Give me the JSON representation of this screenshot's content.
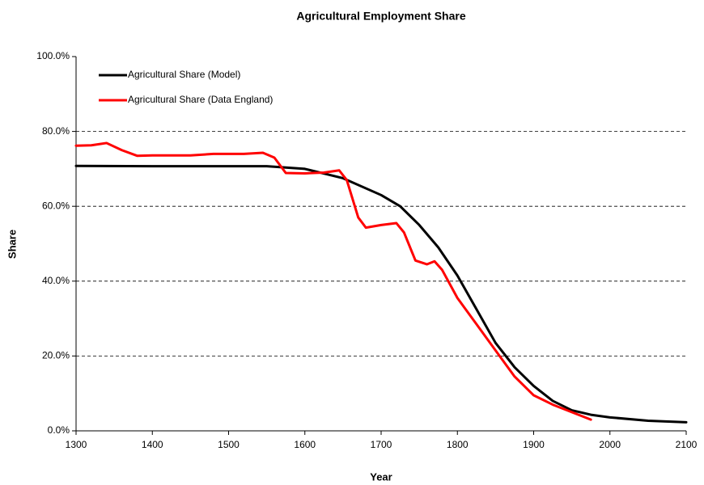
{
  "chart_data": {
    "type": "line",
    "title": "Agricultural Employment Share",
    "x_label": "Year",
    "y_label": "Share",
    "xlim": [
      1300,
      2100
    ],
    "xticks": [
      1300,
      1400,
      1500,
      1600,
      1700,
      1800,
      1900,
      2000,
      2100
    ],
    "ylim": [
      0,
      100
    ],
    "yticks": [
      {
        "value": 0,
        "label": "0.0%"
      },
      {
        "value": 20,
        "label": "20.0%"
      },
      {
        "value": 40,
        "label": "40.0%"
      },
      {
        "value": 60,
        "label": "60.0%"
      },
      {
        "value": 80,
        "label": "80.0%"
      },
      {
        "value": 100,
        "label": "100.0%"
      }
    ],
    "grid": true,
    "legend": "top-left",
    "series": [
      {
        "name": "Agricultural Share (Model)",
        "color": "#000000",
        "x": [
          1300,
          1400,
          1500,
          1550,
          1600,
          1650,
          1700,
          1725,
          1750,
          1775,
          1800,
          1825,
          1850,
          1875,
          1900,
          1925,
          1950,
          1975,
          2000,
          2050,
          2100
        ],
        "values": [
          70.8,
          70.7,
          70.7,
          70.7,
          70,
          67.5,
          63,
          60,
          55,
          49,
          41.5,
          32.5,
          23.5,
          17,
          12,
          8,
          5.5,
          4.3,
          3.6,
          2.7,
          2.3
        ]
      },
      {
        "name": "Agricultural Share (Data England)",
        "color": "#ff0000",
        "x": [
          1300,
          1320,
          1340,
          1360,
          1380,
          1400,
          1450,
          1480,
          1520,
          1545,
          1560,
          1575,
          1600,
          1625,
          1645,
          1655,
          1670,
          1680,
          1700,
          1720,
          1730,
          1745,
          1760,
          1770,
          1780,
          1800,
          1825,
          1850,
          1875,
          1900,
          1925,
          1950,
          1975
        ],
        "values": [
          76.2,
          76.3,
          76.9,
          75,
          73.5,
          73.6,
          73.6,
          74,
          74,
          74.3,
          73,
          68.9,
          68.8,
          69,
          69.6,
          67,
          57,
          54.3,
          55,
          55.5,
          53,
          45.5,
          44.5,
          45.3,
          43,
          35.5,
          28.5,
          21.5,
          14.5,
          9.5,
          7,
          5,
          3
        ]
      }
    ]
  }
}
